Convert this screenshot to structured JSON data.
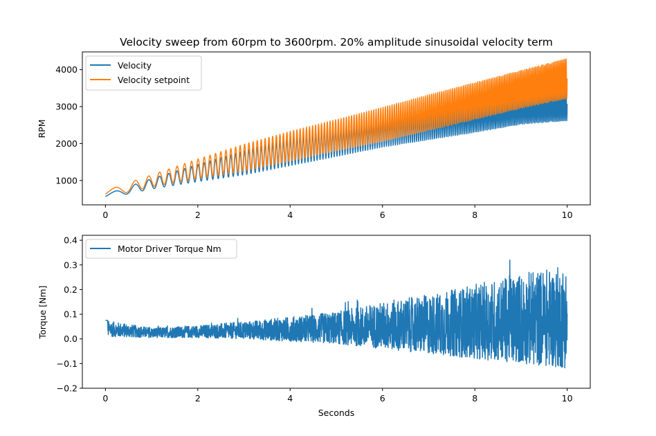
{
  "chart_data": [
    {
      "type": "line",
      "title": "Velocity sweep from 60rpm to 3600rpm. 20% amplitude sinusoidal velocity term",
      "xlabel": "",
      "ylabel": "RPM",
      "xlim": [
        -0.5,
        10.5
      ],
      "ylim": [
        340,
        4480
      ],
      "xticks": [
        "0",
        "2",
        "4",
        "6",
        "8",
        "10"
      ],
      "yticks": [
        "1000",
        "2000",
        "3000",
        "4000"
      ],
      "legend": "top-left",
      "series": [
        {
          "name": "Velocity",
          "color": "#1f77b4",
          "x": [
            0,
            1,
            2,
            3,
            4,
            5,
            6,
            7,
            8,
            9,
            10
          ],
          "upper": [
            620,
            1050,
            1430,
            1800,
            2150,
            2450,
            2700,
            2900,
            3100,
            3300,
            3520
          ],
          "lower": [
            510,
            770,
            970,
            1150,
            1400,
            1650,
            1900,
            2100,
            2300,
            2520,
            2620
          ]
        },
        {
          "name": "Velocity setpoint",
          "color": "#ff7f0e",
          "x": [
            0,
            1,
            2,
            3,
            4,
            5,
            6,
            7,
            8,
            9,
            10
          ],
          "upper": [
            720,
            1150,
            1580,
            1980,
            2330,
            2650,
            2980,
            3320,
            3650,
            3980,
            4300
          ],
          "lower": [
            540,
            830,
            1050,
            1250,
            1520,
            1800,
            2050,
            2350,
            2650,
            2950,
            3220
          ]
        }
      ]
    },
    {
      "type": "line",
      "title": "",
      "xlabel": "Seconds",
      "ylabel": "Torque [Nm]",
      "xlim": [
        -0.5,
        10.5
      ],
      "ylim": [
        -0.2,
        0.42
      ],
      "xticks": [
        "0",
        "2",
        "4",
        "6",
        "8",
        "10"
      ],
      "yticks": [
        "−0.2",
        "−0.1",
        "0.0",
        "0.1",
        "0.2",
        "0.3",
        "0.4"
      ],
      "legend": "top-left",
      "series": [
        {
          "name": "Motor Driver Torque Nm",
          "color": "#1f77b4",
          "x": [
            0,
            1,
            2,
            3,
            4,
            5,
            6,
            7,
            8,
            9,
            10
          ],
          "upper": [
            0.075,
            0.045,
            0.055,
            0.07,
            0.09,
            0.11,
            0.15,
            0.18,
            0.22,
            0.27,
            0.3
          ],
          "lower": [
            0.01,
            0.005,
            0.005,
            0.0,
            -0.01,
            -0.02,
            -0.04,
            -0.06,
            -0.08,
            -0.1,
            -0.12
          ]
        }
      ]
    }
  ]
}
